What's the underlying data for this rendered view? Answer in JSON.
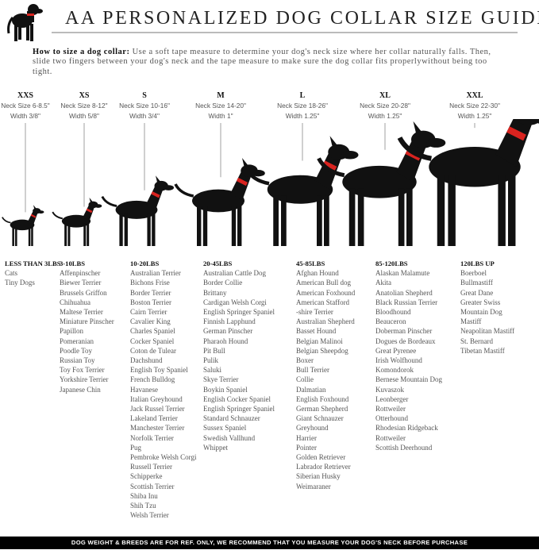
{
  "header": {
    "title": "AA PERSONALIZED DOG COLLAR SIZE GUIDE",
    "intro_bold": "How to size a dog collar:",
    "intro_text": " Use a soft tape measure to determine your dog's neck size where her collar naturally falls. Then, slide two fingers between your dog's neck and the tape measure to make sure the dog collar fits properlywithout being too tight."
  },
  "colors": {
    "collar": "#d9231f",
    "silhouette": "#111111"
  },
  "sizes": [
    {
      "name": "XXS",
      "neck": "Neck Size 6-8.5\"",
      "width": "Width 3/8\""
    },
    {
      "name": "XS",
      "neck": "Neck Size 8-12\"",
      "width": "Width 5/8\""
    },
    {
      "name": "S",
      "neck": "Neck Size 10-16\"",
      "width": "Width 3/4\""
    },
    {
      "name": "M",
      "neck": "Neck Size 14-20\"",
      "width": "Width 1\""
    },
    {
      "name": "L",
      "neck": "Neck Size 18-26\"",
      "width": "Width 1.25\""
    },
    {
      "name": "XL",
      "neck": "Neck Size 20-28\"",
      "width": "Width 1.25\""
    },
    {
      "name": "XXL",
      "neck": "Neck Size 22-30\"",
      "width": "Width 1.25\""
    }
  ],
  "columns": [
    {
      "heading": "LESS THAN 3LBS",
      "breeds": [
        "Cats",
        "Tiny Dogs"
      ]
    },
    {
      "heading": "3-10LBS",
      "breeds": [
        "Affenpinscher",
        "Biewer Terrier",
        "Brussels Griffon",
        "Chihuahua",
        "Maltese Terrier",
        "Miniature Pinscher",
        "Papillon",
        "Pomeranian",
        "Poodle Toy",
        "Russian Toy",
        "Toy Fox Terrier",
        "Yorkshire Terrier",
        "Japanese Chin"
      ]
    },
    {
      "heading": "10-20LBS",
      "breeds": [
        "Australian Terrier",
        "Bichons Frise",
        "Border Terrier",
        "Boston Terrier",
        "Cairn Terrier",
        "Cavalier King",
        "Charles Spaniel",
        "Cocker Spaniel",
        "Coton de Tulear",
        "Dachshund",
        "English Toy Spaniel",
        "French Bulldog",
        "Havanese",
        "Italian Greyhound",
        "Jack Russel Terrier",
        "Lakeland Terrier",
        "Manchester Terrier",
        "Norfolk Terrier",
        "Pug",
        "Pembroke Welsh Corgi",
        "Russell Terrier",
        "Schipperke",
        "Scottish Terrier",
        "Shiba Inu",
        "Shih Tzu",
        "Welsh Terrier"
      ]
    },
    {
      "heading": "20-45LBS",
      "breeds": [
        "Australian Cattle Dog",
        "Border Collie",
        "Brittany",
        "Cardigan Welsh Corgi",
        "English Springer Spaniel",
        "Finnish Lapphund",
        "German Pinscher",
        "Pharaoh Hound",
        "Pit Bull",
        "Pulik",
        "Saluki",
        "Skye Terrier",
        "Boykin Spaniel",
        "English Cocker Spaniel",
        "English Springer Spaniel",
        "Standard Schnauzer",
        "Sussex Spaniel",
        "Swedish Vallhund",
        "Whippet"
      ]
    },
    {
      "heading": "45-85LBS",
      "breeds": [
        "Afghan Hound",
        "American Bull dog",
        "American Foxhound",
        "American Stafford",
        "-shire Terrier",
        "Australian Shepherd",
        "Basset Hound",
        "Belgian Malinoi",
        "Belgian Sheepdog",
        "Boxer",
        "Bull Terrier",
        "Collie",
        "Dalmatian",
        "English Foxhound",
        "German Shepherd",
        "Giant Schnauzer",
        "Greyhound",
        "Harrier",
        "Pointer",
        "Golden Retriever",
        "Labrador Retriever",
        "Siberian Husky",
        "Weimaraner"
      ]
    },
    {
      "heading": "85-120LBS",
      "breeds": [
        "Alaskan Malamute",
        "Akita",
        "Anatolian Shepherd",
        "Black Russian Terrier",
        "Bloodhound",
        "Beauceron",
        "Doberman Pinscher",
        "Dogues de Bordeaux",
        "Great Pyrenee",
        "Irish Wolfhound",
        "Komondorok",
        "Bernese Mountain Dog",
        "Kuvaszok",
        "Leonberger",
        "Rottweiler",
        "Otterhound",
        "Rhodesian Ridgeback",
        "Rottweiler",
        "Scottish Deerhound"
      ]
    },
    {
      "heading": "120LBS UP",
      "breeds": [
        "Boerboel",
        "Bullmastiff",
        "Great Dane",
        "Greater Swiss",
        "Mountain Dog",
        "Mastiff",
        "Neapolitan Mastiff",
        "St. Bernard",
        "Tibetan Mastiff"
      ]
    }
  ],
  "footer": {
    "text": "DOG WEIGHT & BREEDS ARE FOR REF. ONLY, WE RECOMMEND THAT YOU MEASURE YOUR DOG'S NECK BEFORE PURCHASE"
  }
}
